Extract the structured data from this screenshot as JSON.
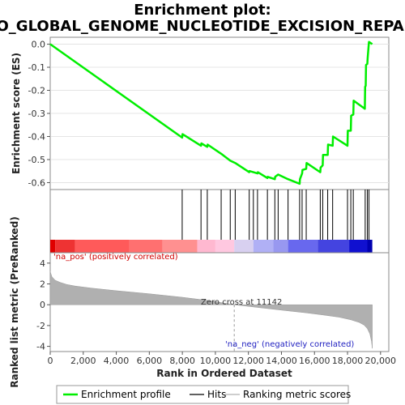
{
  "chart_data": {
    "title_line1": "Enrichment plot:",
    "title_line2": "GO_GLOBAL_GENOME_NUCLEOTIDE_EXCISION_REPAIR",
    "type": "line",
    "es_panel": {
      "ylabel": "Enrichment score (ES)",
      "ylim": [
        -0.63,
        0.03
      ],
      "yticks": [
        "0.0",
        "-0.1",
        "-0.2",
        "-0.3",
        "-0.4",
        "-0.5",
        "-0.6"
      ],
      "ytick_values": [
        0.0,
        -0.1,
        -0.2,
        -0.3,
        -0.4,
        -0.5,
        -0.6
      ],
      "series": [
        {
          "name": "Enrichment profile",
          "color": "#00ee00",
          "points": [
            [
              0,
              0.0
            ],
            [
              7990,
              -0.405
            ],
            [
              8010,
              -0.39
            ],
            [
              9130,
              -0.44
            ],
            [
              9150,
              -0.43
            ],
            [
              9510,
              -0.445
            ],
            [
              9530,
              -0.435
            ],
            [
              10350,
              -0.475
            ],
            [
              10900,
              -0.505
            ],
            [
              11200,
              -0.515
            ],
            [
              12050,
              -0.555
            ],
            [
              12070,
              -0.55
            ],
            [
              12300,
              -0.555
            ],
            [
              12550,
              -0.56
            ],
            [
              12570,
              -0.555
            ],
            [
              13150,
              -0.58
            ],
            [
              13170,
              -0.575
            ],
            [
              13600,
              -0.585
            ],
            [
              13620,
              -0.575
            ],
            [
              13800,
              -0.565
            ],
            [
              14400,
              -0.585
            ],
            [
              15100,
              -0.605
            ],
            [
              15120,
              -0.585
            ],
            [
              15250,
              -0.56
            ],
            [
              15270,
              -0.545
            ],
            [
              15500,
              -0.54
            ],
            [
              15520,
              -0.515
            ],
            [
              16350,
              -0.555
            ],
            [
              16370,
              -0.535
            ],
            [
              16500,
              -0.525
            ],
            [
              16520,
              -0.48
            ],
            [
              16800,
              -0.48
            ],
            [
              16820,
              -0.435
            ],
            [
              17100,
              -0.44
            ],
            [
              17120,
              -0.4
            ],
            [
              18000,
              -0.44
            ],
            [
              18020,
              -0.375
            ],
            [
              18200,
              -0.375
            ],
            [
              18220,
              -0.31
            ],
            [
              18350,
              -0.305
            ],
            [
              18370,
              -0.245
            ],
            [
              19050,
              -0.28
            ],
            [
              19070,
              -0.185
            ],
            [
              19100,
              -0.18
            ],
            [
              19120,
              -0.09
            ],
            [
              19200,
              -0.085
            ],
            [
              19220,
              -0.06
            ],
            [
              19300,
              0.01
            ],
            [
              19500,
              0.0
            ]
          ]
        }
      ]
    },
    "hits": {
      "name": "Hits",
      "ranks": [
        7990,
        9130,
        9510,
        10350,
        10900,
        11200,
        12050,
        12300,
        12550,
        13150,
        13600,
        13800,
        14400,
        15100,
        15250,
        15500,
        16350,
        16500,
        16800,
        17100,
        18000,
        18200,
        18350,
        19070,
        19200,
        19300
      ]
    },
    "heatmap": {
      "n_genes": 19500,
      "segments": [
        {
          "end": 300,
          "color": "#e00000"
        },
        {
          "end": 1500,
          "color": "#ee3333"
        },
        {
          "end": 4800,
          "color": "#ff5a5a"
        },
        {
          "end": 6800,
          "color": "#ff7070"
        },
        {
          "end": 8900,
          "color": "#ff9090"
        },
        {
          "end": 10000,
          "color": "#ffb8d0"
        },
        {
          "end": 11142,
          "color": "#ffc8e0"
        },
        {
          "end": 12300,
          "color": "#d8d0f0"
        },
        {
          "end": 13500,
          "color": "#b0b0f5"
        },
        {
          "end": 14400,
          "color": "#9898f0"
        },
        {
          "end": 16200,
          "color": "#6868ee"
        },
        {
          "end": 18100,
          "color": "#4444e0"
        },
        {
          "end": 19200,
          "color": "#1010d0"
        },
        {
          "end": 19500,
          "color": "#0000b0"
        }
      ]
    },
    "ranked_panel": {
      "ylabel": "Ranked list metric (PreRanked)",
      "xlabel": "Rank in Ordered Dataset",
      "ylim": [
        -4.5,
        5.0
      ],
      "yticks": [
        "4",
        "2",
        "0",
        "-2",
        "-4"
      ],
      "ytick_values": [
        4,
        2,
        0,
        -2,
        -4
      ],
      "xlim": [
        0,
        20500
      ],
      "xticks": [
        "0",
        "2,000",
        "4,000",
        "6,000",
        "8,000",
        "10,000",
        "12,000",
        "14,000",
        "16,000",
        "18,000",
        "20,000"
      ],
      "xtick_values": [
        0,
        2000,
        4000,
        6000,
        8000,
        10000,
        12000,
        14000,
        16000,
        18000,
        20000
      ],
      "profile": [
        [
          0,
          3.2
        ],
        [
          100,
          2.7
        ],
        [
          300,
          2.35
        ],
        [
          600,
          2.15
        ],
        [
          1000,
          1.95
        ],
        [
          1500,
          1.8
        ],
        [
          2500,
          1.6
        ],
        [
          4000,
          1.35
        ],
        [
          6000,
          1.05
        ],
        [
          8000,
          0.72
        ],
        [
          9500,
          0.42
        ],
        [
          11142,
          0.0
        ],
        [
          12500,
          -0.25
        ],
        [
          14000,
          -0.52
        ],
        [
          15500,
          -0.78
        ],
        [
          16500,
          -0.98
        ],
        [
          17500,
          -1.2
        ],
        [
          18200,
          -1.45
        ],
        [
          18700,
          -1.7
        ],
        [
          19000,
          -1.95
        ],
        [
          19200,
          -2.3
        ],
        [
          19350,
          -2.8
        ],
        [
          19450,
          -3.5
        ],
        [
          19500,
          -4.2
        ]
      ],
      "zero_cross_label": "Zero cross at 11142",
      "zero_cross_rank": 11142,
      "pos_label": "'na_pos' (positively correlated)",
      "neg_label": "'na_neg' (negatively correlated)"
    },
    "legend": [
      {
        "name": "Enrichment profile",
        "color": "#00ee00"
      },
      {
        "name": "Hits",
        "color": "#000000"
      },
      {
        "name": "Ranking metric scores",
        "color": "#b0b0b0"
      }
    ]
  }
}
